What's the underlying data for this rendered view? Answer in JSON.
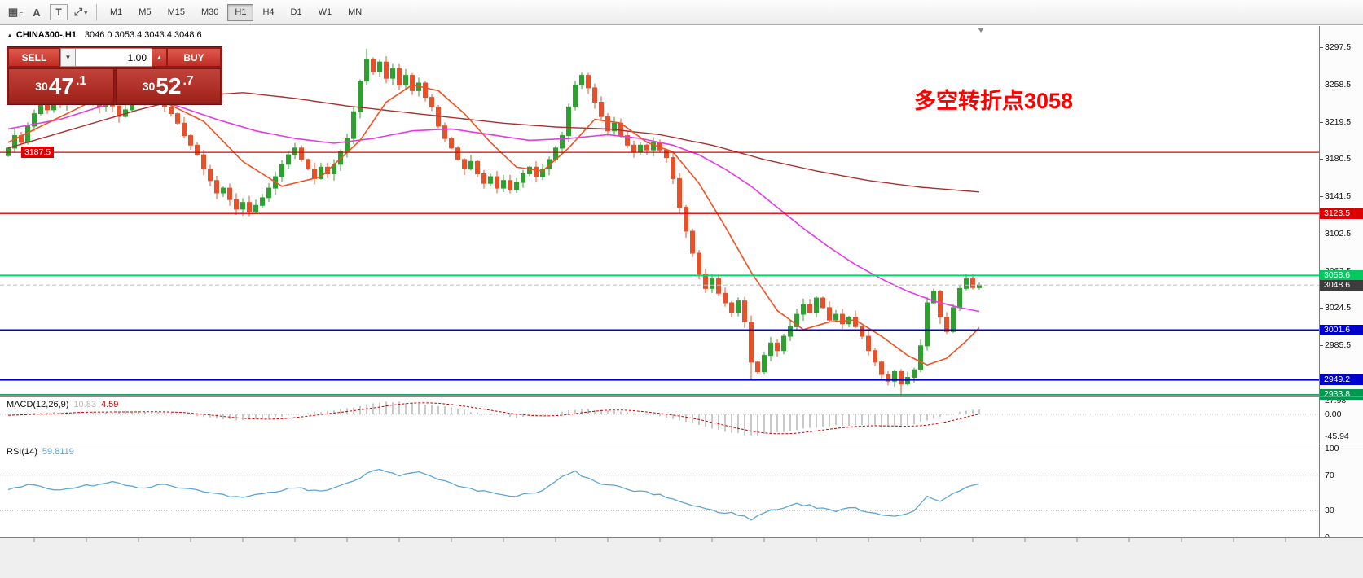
{
  "colors": {
    "bull": "#2da12d",
    "bear": "#e8502a",
    "ma_magenta": "#e53ae5",
    "ma_orange": "#f05222",
    "ma_darkred": "#aa3030",
    "line_red": "#dd0000",
    "line_green": "#00d967",
    "line_blue": "#0000cc",
    "current_line": "#bdbdbd",
    "badge_dark": "#3d3d3d",
    "badge_green_low": "#009a4e",
    "annotation": "#ff0000",
    "rsi_line": "#5aa7d4",
    "rsi_level": "#b8b8b8",
    "macd_hist": "#b4b4b4",
    "macd_signal": "#cc0000"
  },
  "toolbar": {
    "icons": [
      {
        "name": "grid-f-icon",
        "glyph": "▦",
        "sub": "F"
      },
      {
        "name": "annotate-a-icon",
        "glyph": "A",
        "sub": ""
      },
      {
        "name": "text-label-icon",
        "glyph": "T",
        "sub": "",
        "boxed": true
      },
      {
        "name": "draw-tools-icon",
        "glyph": "⤢",
        "sub": "",
        "caret": "▾"
      }
    ],
    "timeframes": [
      "M1",
      "M5",
      "M15",
      "M30",
      "H1",
      "H4",
      "D1",
      "W1",
      "MN"
    ],
    "active_timeframe": "H1"
  },
  "chart": {
    "toggle_icon": "▲",
    "symbol": "CHINA300-,H1",
    "ohlc": "3046.0 3053.4 3043.4 3048.6",
    "annotation": "多空转折点3058",
    "left_badge": "3187.5",
    "axis": {
      "ticks": [
        3297.5,
        3258.5,
        3219.5,
        3180.5,
        3141.5,
        3102.5,
        3063.5,
        3024.5,
        2985.5
      ],
      "badges": [
        {
          "label": "3123.5",
          "price": 3123.5,
          "bg": "#dd0000"
        },
        {
          "label": "3058.6",
          "price": 3058.6,
          "bg": "#00c95f"
        },
        {
          "label": "3048.6",
          "price": 3048.6,
          "bg": "#3d3d3d"
        },
        {
          "label": "3001.6",
          "price": 3001.6,
          "bg": "#0000cc"
        },
        {
          "label": "2949.2",
          "price": 2949.2,
          "bg": "#0000cc"
        },
        {
          "label": "2933.8",
          "price": 2933.8,
          "bg": "#009a4e"
        }
      ]
    },
    "hlines": [
      {
        "price": 3187.5,
        "color": "#dd0000",
        "width": 1.3
      },
      {
        "price": 3123.5,
        "color": "#dd0000",
        "width": 1.3
      },
      {
        "price": 3058.6,
        "color": "#00d967",
        "width": 2
      },
      {
        "price": 3048.6,
        "color": "#bdbdbd",
        "width": 1
      },
      {
        "price": 3001.6,
        "color": "#0000cc",
        "width": 1.6
      },
      {
        "price": 2949.2,
        "color": "#0000cc",
        "width": 1.6
      },
      {
        "price": 2933.8,
        "color": "#009a4e",
        "width": 1.6
      }
    ],
    "candles": {
      "closes": [
        3192,
        3205,
        3198,
        3215,
        3228,
        3240,
        3232,
        3245,
        3238,
        3252,
        3246,
        3258,
        3250,
        3242,
        3235,
        3244,
        3236,
        3225,
        3232,
        3240,
        3248,
        3242,
        3250,
        3243,
        3235,
        3228,
        3218,
        3205,
        3195,
        3185,
        3170,
        3158,
        3145,
        3150,
        3138,
        3128,
        3135,
        3125,
        3132,
        3140,
        3150,
        3162,
        3175,
        3185,
        3192,
        3180,
        3170,
        3160,
        3172,
        3165,
        3175,
        3188,
        3202,
        3230,
        3262,
        3285,
        3272,
        3282,
        3265,
        3275,
        3258,
        3268,
        3252,
        3260,
        3245,
        3235,
        3215,
        3202,
        3192,
        3180,
        3170,
        3178,
        3165,
        3155,
        3162,
        3150,
        3158,
        3148,
        3156,
        3165,
        3172,
        3162,
        3170,
        3180,
        3192,
        3205,
        3235,
        3258,
        3268,
        3255,
        3240,
        3225,
        3210,
        3218,
        3205,
        3195,
        3188,
        3195,
        3190,
        3198,
        3190,
        3182,
        3160,
        3130,
        3105,
        3082,
        3060,
        3045,
        3055,
        3040,
        3030,
        3020,
        3032,
        3010,
        2968,
        2958,
        2975,
        2988,
        2980,
        2995,
        3005,
        3018,
        3028,
        3020,
        3035,
        3025,
        3012,
        3018,
        3008,
        3015,
        3005,
        2995,
        2980,
        2968,
        2955,
        2948,
        2958,
        2945,
        2952,
        2960,
        2985,
        3030,
        3042,
        3015,
        3000,
        3025,
        3045,
        3055,
        3046,
        3048.6
      ]
    },
    "ma": {
      "magenta": [
        [
          0,
          3212
        ],
        [
          8,
          3222
        ],
        [
          14,
          3235
        ],
        [
          20,
          3245
        ],
        [
          26,
          3236
        ],
        [
          32,
          3222
        ],
        [
          38,
          3210
        ],
        [
          44,
          3202
        ],
        [
          50,
          3197
        ],
        [
          56,
          3202
        ],
        [
          62,
          3210
        ],
        [
          68,
          3212
        ],
        [
          74,
          3206
        ],
        [
          80,
          3200
        ],
        [
          86,
          3202
        ],
        [
          92,
          3206
        ],
        [
          97,
          3202
        ],
        [
          102,
          3195
        ],
        [
          106,
          3185
        ],
        [
          110,
          3170
        ],
        [
          114,
          3152
        ],
        [
          118,
          3130
        ],
        [
          122,
          3108
        ],
        [
          126,
          3088
        ],
        [
          130,
          3070
        ],
        [
          134,
          3055
        ],
        [
          138,
          3042
        ],
        [
          142,
          3032
        ],
        [
          146,
          3025
        ],
        [
          149,
          3021
        ]
      ],
      "orange": [
        [
          0,
          3198
        ],
        [
          6,
          3218
        ],
        [
          12,
          3238
        ],
        [
          18,
          3242
        ],
        [
          24,
          3240
        ],
        [
          30,
          3220
        ],
        [
          36,
          3178
        ],
        [
          42,
          3152
        ],
        [
          48,
          3162
        ],
        [
          54,
          3200
        ],
        [
          58,
          3240
        ],
        [
          62,
          3258
        ],
        [
          66,
          3252
        ],
        [
          70,
          3228
        ],
        [
          74,
          3198
        ],
        [
          78,
          3172
        ],
        [
          82,
          3168
        ],
        [
          86,
          3192
        ],
        [
          90,
          3222
        ],
        [
          94,
          3218
        ],
        [
          98,
          3198
        ],
        [
          102,
          3188
        ],
        [
          106,
          3155
        ],
        [
          110,
          3110
        ],
        [
          114,
          3062
        ],
        [
          118,
          3022
        ],
        [
          122,
          3002
        ],
        [
          126,
          3010
        ],
        [
          130,
          3012
        ],
        [
          134,
          2995
        ],
        [
          138,
          2975
        ],
        [
          141,
          2965
        ],
        [
          144,
          2972
        ],
        [
          147,
          2990
        ],
        [
          149,
          3004
        ]
      ],
      "darkred": [
        [
          0,
          3192
        ],
        [
          10,
          3212
        ],
        [
          20,
          3232
        ],
        [
          28,
          3246
        ],
        [
          36,
          3250
        ],
        [
          44,
          3244
        ],
        [
          52,
          3236
        ],
        [
          60,
          3230
        ],
        [
          68,
          3224
        ],
        [
          76,
          3218
        ],
        [
          84,
          3214
        ],
        [
          92,
          3212
        ],
        [
          100,
          3206
        ],
        [
          108,
          3195
        ],
        [
          116,
          3180
        ],
        [
          124,
          3168
        ],
        [
          132,
          3158
        ],
        [
          140,
          3151
        ],
        [
          149,
          3146
        ]
      ]
    }
  },
  "trade_panel": {
    "sell_label": "SELL",
    "buy_label": "BUY",
    "volume": "1.00",
    "drop_icon": "▼",
    "spin_icon": "▲",
    "sell_price": {
      "pre": "30",
      "big": "47",
      "dec": ".1"
    },
    "buy_price": {
      "pre": "30",
      "big": "52",
      "dec": ".7"
    }
  },
  "macd": {
    "name": "MACD(12,26,9)",
    "main": "10.83",
    "signal": "4.59",
    "axis_labels": [
      {
        "label": "27.98",
        "v": 27.98
      },
      {
        "label": "0.00",
        "v": 0
      },
      {
        "label": "-45.94",
        "v": -45.94
      }
    ],
    "hist_anchors": [
      [
        0,
        -2
      ],
      [
        5,
        3
      ],
      [
        10,
        6
      ],
      [
        15,
        4
      ],
      [
        20,
        7
      ],
      [
        25,
        2
      ],
      [
        30,
        -6
      ],
      [
        35,
        -12
      ],
      [
        40,
        -8
      ],
      [
        45,
        2
      ],
      [
        50,
        8
      ],
      [
        55,
        20
      ],
      [
        58,
        26
      ],
      [
        62,
        24
      ],
      [
        66,
        18
      ],
      [
        70,
        8
      ],
      [
        74,
        0
      ],
      [
        78,
        -6
      ],
      [
        82,
        -2
      ],
      [
        86,
        8
      ],
      [
        88,
        12
      ],
      [
        92,
        8
      ],
      [
        96,
        2
      ],
      [
        100,
        -4
      ],
      [
        104,
        -16
      ],
      [
        108,
        -30
      ],
      [
        112,
        -40
      ],
      [
        114,
        -44
      ],
      [
        118,
        -38
      ],
      [
        122,
        -30
      ],
      [
        126,
        -24
      ],
      [
        130,
        -22
      ],
      [
        134,
        -26
      ],
      [
        138,
        -24
      ],
      [
        141,
        -12
      ],
      [
        144,
        -2
      ],
      [
        147,
        8
      ],
      [
        149,
        10.83
      ]
    ]
  },
  "rsi": {
    "name": "RSI(14)",
    "value": "59.8119",
    "axis_labels": [
      {
        "label": "100",
        "v": 100
      },
      {
        "label": "70",
        "v": 70
      },
      {
        "label": "30",
        "v": 30
      },
      {
        "label": "0",
        "v": 0
      }
    ],
    "levels": [
      70,
      30
    ],
    "anchors": [
      [
        0,
        55
      ],
      [
        4,
        60
      ],
      [
        8,
        52
      ],
      [
        12,
        58
      ],
      [
        16,
        63
      ],
      [
        20,
        56
      ],
      [
        24,
        60
      ],
      [
        28,
        54
      ],
      [
        32,
        48
      ],
      [
        36,
        44
      ],
      [
        40,
        50
      ],
      [
        44,
        56
      ],
      [
        48,
        52
      ],
      [
        52,
        60
      ],
      [
        55,
        72
      ],
      [
        57,
        78
      ],
      [
        60,
        70
      ],
      [
        63,
        73
      ],
      [
        66,
        65
      ],
      [
        70,
        55
      ],
      [
        74,
        50
      ],
      [
        78,
        46
      ],
      [
        82,
        52
      ],
      [
        85,
        68
      ],
      [
        87,
        74
      ],
      [
        90,
        62
      ],
      [
        93,
        58
      ],
      [
        96,
        52
      ],
      [
        100,
        48
      ],
      [
        104,
        38
      ],
      [
        108,
        30
      ],
      [
        112,
        26
      ],
      [
        114,
        20
      ],
      [
        116,
        28
      ],
      [
        118,
        32
      ],
      [
        121,
        38
      ],
      [
        124,
        34
      ],
      [
        127,
        30
      ],
      [
        130,
        33
      ],
      [
        133,
        27
      ],
      [
        136,
        24
      ],
      [
        139,
        30
      ],
      [
        141,
        45
      ],
      [
        143,
        40
      ],
      [
        145,
        50
      ],
      [
        147,
        57
      ],
      [
        149,
        59.8
      ]
    ]
  }
}
